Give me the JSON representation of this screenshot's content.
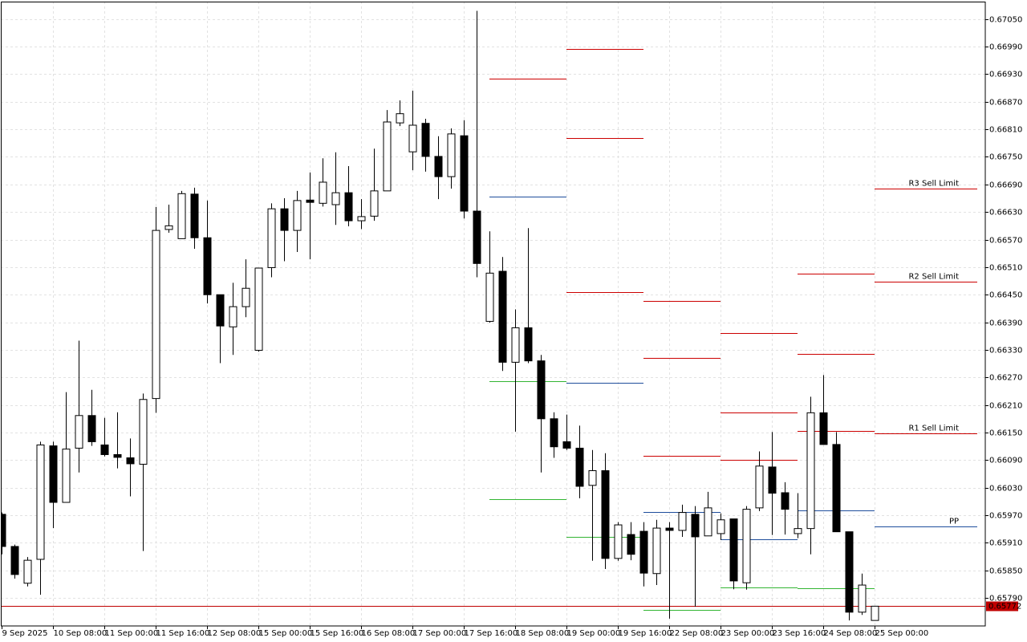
{
  "chart_data": {
    "type": "candlestick",
    "categories": [
      "9 Sep 2025",
      null,
      null,
      null,
      "10 Sep 08:00",
      null,
      null,
      null,
      "11 Sep 00:00",
      null,
      null,
      null,
      "11 Sep 16:00",
      null,
      null,
      null,
      "12 Sep 08:00",
      null,
      null,
      null,
      "15 Sep 00:00",
      null,
      null,
      null,
      "15 Sep 16:00",
      null,
      null,
      null,
      "16 Sep 08:00",
      null,
      null,
      null,
      "17 Sep 00:00",
      null,
      null,
      null,
      "17 Sep 16:00",
      null,
      null,
      null,
      "18 Sep 08:00",
      null,
      null,
      null,
      "19 Sep 00:00",
      null,
      null,
      null,
      "19 Sep 16:00",
      null,
      null,
      null,
      "22 Sep 08:00",
      null,
      null,
      null,
      "23 Sep 00:00",
      null,
      null,
      null,
      "23 Sep 16:00",
      null,
      null,
      null,
      "24 Sep 08:00",
      null,
      null,
      null,
      "25 Sep 00:00"
    ],
    "open": [
      0.65972,
      0.65902,
      0.65822,
      0.65874,
      0.66121,
      0.65998,
      0.66116,
      0.66187,
      0.66123,
      0.66102,
      0.66095,
      0.66081,
      0.66224,
      0.66592,
      0.66572,
      0.66669,
      0.66574,
      0.6645,
      0.6638,
      0.66424,
      0.66329,
      0.66509,
      0.66637,
      0.6659,
      0.66656,
      0.66649,
      0.66646,
      0.66672,
      0.66611,
      0.66621,
      0.66676,
      0.66824,
      0.66761,
      0.66823,
      0.66751,
      0.66707,
      0.66796,
      0.66632,
      0.66392,
      0.66501,
      0.66303,
      0.66378,
      0.66306,
      0.6618,
      0.6613,
      0.66116,
      0.66035,
      0.66067,
      0.65876,
      0.65928,
      0.65935,
      0.65843,
      0.65942,
      0.65937,
      0.65972,
      0.65925,
      0.6593,
      0.65962,
      0.65823,
      0.65986,
      0.66075,
      0.66019,
      0.6593,
      0.65941,
      0.66193,
      0.66124,
      0.65934,
      0.65759,
      0.65741
    ],
    "high": [
      0.65976,
      0.65906,
      0.65879,
      0.6613,
      0.6613,
      0.66238,
      0.6635,
      0.66243,
      0.66182,
      0.66194,
      0.66137,
      0.66235,
      0.66641,
      0.66646,
      0.66676,
      0.66683,
      0.66655,
      0.6645,
      0.66476,
      0.66527,
      0.66508,
      0.66649,
      0.6666,
      0.66676,
      0.66716,
      0.66747,
      0.6676,
      0.6673,
      0.66658,
      0.66768,
      0.66852,
      0.66873,
      0.66894,
      0.66833,
      0.66795,
      0.66812,
      0.6683,
      0.67068,
      0.66588,
      0.66532,
      0.66418,
      0.66595,
      0.66319,
      0.66194,
      0.66189,
      0.66165,
      0.66112,
      0.66105,
      0.65955,
      0.65955,
      0.65955,
      0.6596,
      0.65955,
      0.65993,
      0.6599,
      0.66021,
      0.65974,
      0.65962,
      0.6599,
      0.66109,
      0.66151,
      0.66042,
      0.66018,
      0.66228,
      0.66275,
      0.66151,
      0.65934,
      0.65843,
      0.65772
    ],
    "low": [
      0.65885,
      0.65832,
      0.65815,
      0.65797,
      0.65942,
      0.65998,
      0.66063,
      0.66121,
      0.66098,
      0.66072,
      0.66011,
      0.65892,
      0.66193,
      0.66585,
      0.66572,
      0.6655,
      0.66431,
      0.66301,
      0.66319,
      0.66401,
      0.66326,
      0.66488,
      0.66523,
      0.66543,
      0.66527,
      0.66642,
      0.66602,
      0.66599,
      0.66593,
      0.66611,
      0.66676,
      0.66817,
      0.66721,
      0.66718,
      0.66658,
      0.66681,
      0.66616,
      0.66488,
      0.66389,
      0.66284,
      0.66152,
      0.66301,
      0.66063,
      0.66095,
      0.66112,
      0.66007,
      0.65871,
      0.65853,
      0.65871,
      0.65872,
      0.65815,
      0.65818,
      0.65745,
      0.65923,
      0.65771,
      0.65925,
      0.65916,
      0.65809,
      0.65808,
      0.65979,
      0.65927,
      0.65928,
      0.6592,
      0.65885,
      0.66124,
      0.65934,
      0.65741,
      0.65753,
      0.65741
    ],
    "close": [
      0.65902,
      0.65841,
      0.65872,
      0.66123,
      0.65998,
      0.66114,
      0.66187,
      0.6613,
      0.66102,
      0.66096,
      0.66082,
      0.66222,
      0.6659,
      0.666,
      0.6667,
      0.66574,
      0.6645,
      0.66382,
      0.66424,
      0.66464,
      0.66508,
      0.66637,
      0.6659,
      0.66655,
      0.66651,
      0.66695,
      0.66672,
      0.66611,
      0.6662,
      0.66676,
      0.66826,
      0.66844,
      0.66819,
      0.66751,
      0.66707,
      0.668,
      0.66632,
      0.66518,
      0.66497,
      0.66303,
      0.66378,
      0.66306,
      0.6618,
      0.66119,
      0.66116,
      0.66033,
      0.66067,
      0.65876,
      0.65949,
      0.65885,
      0.65844,
      0.65942,
      0.65937,
      0.65976,
      0.65923,
      0.65986,
      0.6596,
      0.65827,
      0.65983,
      0.66077,
      0.66018,
      0.65983,
      0.65941,
      0.66193,
      0.66124,
      0.65934,
      0.65759,
      0.65818,
      0.65772
    ],
    "up_color": "#ffffff",
    "down_color": "#000000",
    "ylim": [
      0.65729,
      0.67088
    ],
    "yticks": [
      {
        "value": 0.6705,
        "label": "0.67050"
      },
      {
        "value": 0.6699,
        "label": "0.66990"
      },
      {
        "value": 0.6693,
        "label": "0.66930"
      },
      {
        "value": 0.6687,
        "label": "0.66870"
      },
      {
        "value": 0.6681,
        "label": "0.66810"
      },
      {
        "value": 0.6675,
        "label": "0.66750"
      },
      {
        "value": 0.6669,
        "label": "0.66690"
      },
      {
        "value": 0.6663,
        "label": "0.66630"
      },
      {
        "value": 0.6657,
        "label": "0.66570"
      },
      {
        "value": 0.6651,
        "label": "0.66510"
      },
      {
        "value": 0.6645,
        "label": "0.66450"
      },
      {
        "value": 0.6639,
        "label": "0.66390"
      },
      {
        "value": 0.6633,
        "label": "0.66330"
      },
      {
        "value": 0.6627,
        "label": "0.66270"
      },
      {
        "value": 0.6621,
        "label": "0.66210"
      },
      {
        "value": 0.6615,
        "label": "0.66150"
      },
      {
        "value": 0.6609,
        "label": "0.66090"
      },
      {
        "value": 0.6603,
        "label": "0.66030"
      },
      {
        "value": 0.6597,
        "label": "0.65970"
      },
      {
        "value": 0.6591,
        "label": "0.65910"
      },
      {
        "value": 0.6585,
        "label": "0.65850"
      },
      {
        "value": 0.6579,
        "label": "0.65790"
      }
    ],
    "grid": true,
    "last_price": 0.65772,
    "last_price_color": "#c00000",
    "levels": [
      {
        "from": 38,
        "to": 44,
        "lines": [
          {
            "value": 0.6692,
            "color": "#cc0000"
          },
          {
            "value": 0.66663,
            "color": "#1f4e9c"
          },
          {
            "value": 0.66262,
            "color": "#33b533"
          },
          {
            "value": 0.66005,
            "color": "#33b533"
          }
        ]
      },
      {
        "from": 44,
        "to": 50,
        "lines": [
          {
            "value": 0.66985,
            "color": "#cc0000"
          },
          {
            "value": 0.66791,
            "color": "#cc0000"
          },
          {
            "value": 0.66455,
            "color": "#cc0000"
          },
          {
            "value": 0.66259,
            "color": "#1f4e9c"
          },
          {
            "value": 0.65923,
            "color": "#33b533"
          }
        ]
      },
      {
        "from": 50,
        "to": 56,
        "lines": [
          {
            "value": 0.66436,
            "color": "#cc0000"
          },
          {
            "value": 0.66313,
            "color": "#cc0000"
          },
          {
            "value": 0.661,
            "color": "#cc0000"
          },
          {
            "value": 0.65977,
            "color": "#1f4e9c"
          },
          {
            "value": 0.65764,
            "color": "#33b533"
          }
        ]
      },
      {
        "from": 56,
        "to": 62,
        "lines": [
          {
            "value": 0.66367,
            "color": "#cc0000"
          },
          {
            "value": 0.66194,
            "color": "#cc0000"
          },
          {
            "value": 0.66091,
            "color": "#cc0000"
          },
          {
            "value": 0.65918,
            "color": "#1f4e9c"
          },
          {
            "value": 0.65813,
            "color": "#33b533"
          }
        ]
      },
      {
        "from": 62,
        "to": 68,
        "lines": [
          {
            "value": 0.66495,
            "color": "#cc0000"
          },
          {
            "value": 0.66322,
            "color": "#cc0000"
          },
          {
            "value": 0.66154,
            "color": "#cc0000"
          },
          {
            "value": 0.65981,
            "color": "#1f4e9c"
          },
          {
            "value": 0.65811,
            "color": "#33b533"
          }
        ]
      },
      {
        "from": 68,
        "to": 76,
        "lines": [
          {
            "value": 0.66681,
            "color": "#cc0000",
            "label": "R3 Sell Limit"
          },
          {
            "value": 0.66478,
            "color": "#cc0000",
            "label": "R2 Sell Limit"
          },
          {
            "value": 0.66149,
            "color": "#cc0000",
            "label": "R1 Sell Limit"
          },
          {
            "value": 0.65946,
            "color": "#1f4e9c",
            "label": "PP"
          }
        ]
      }
    ]
  }
}
